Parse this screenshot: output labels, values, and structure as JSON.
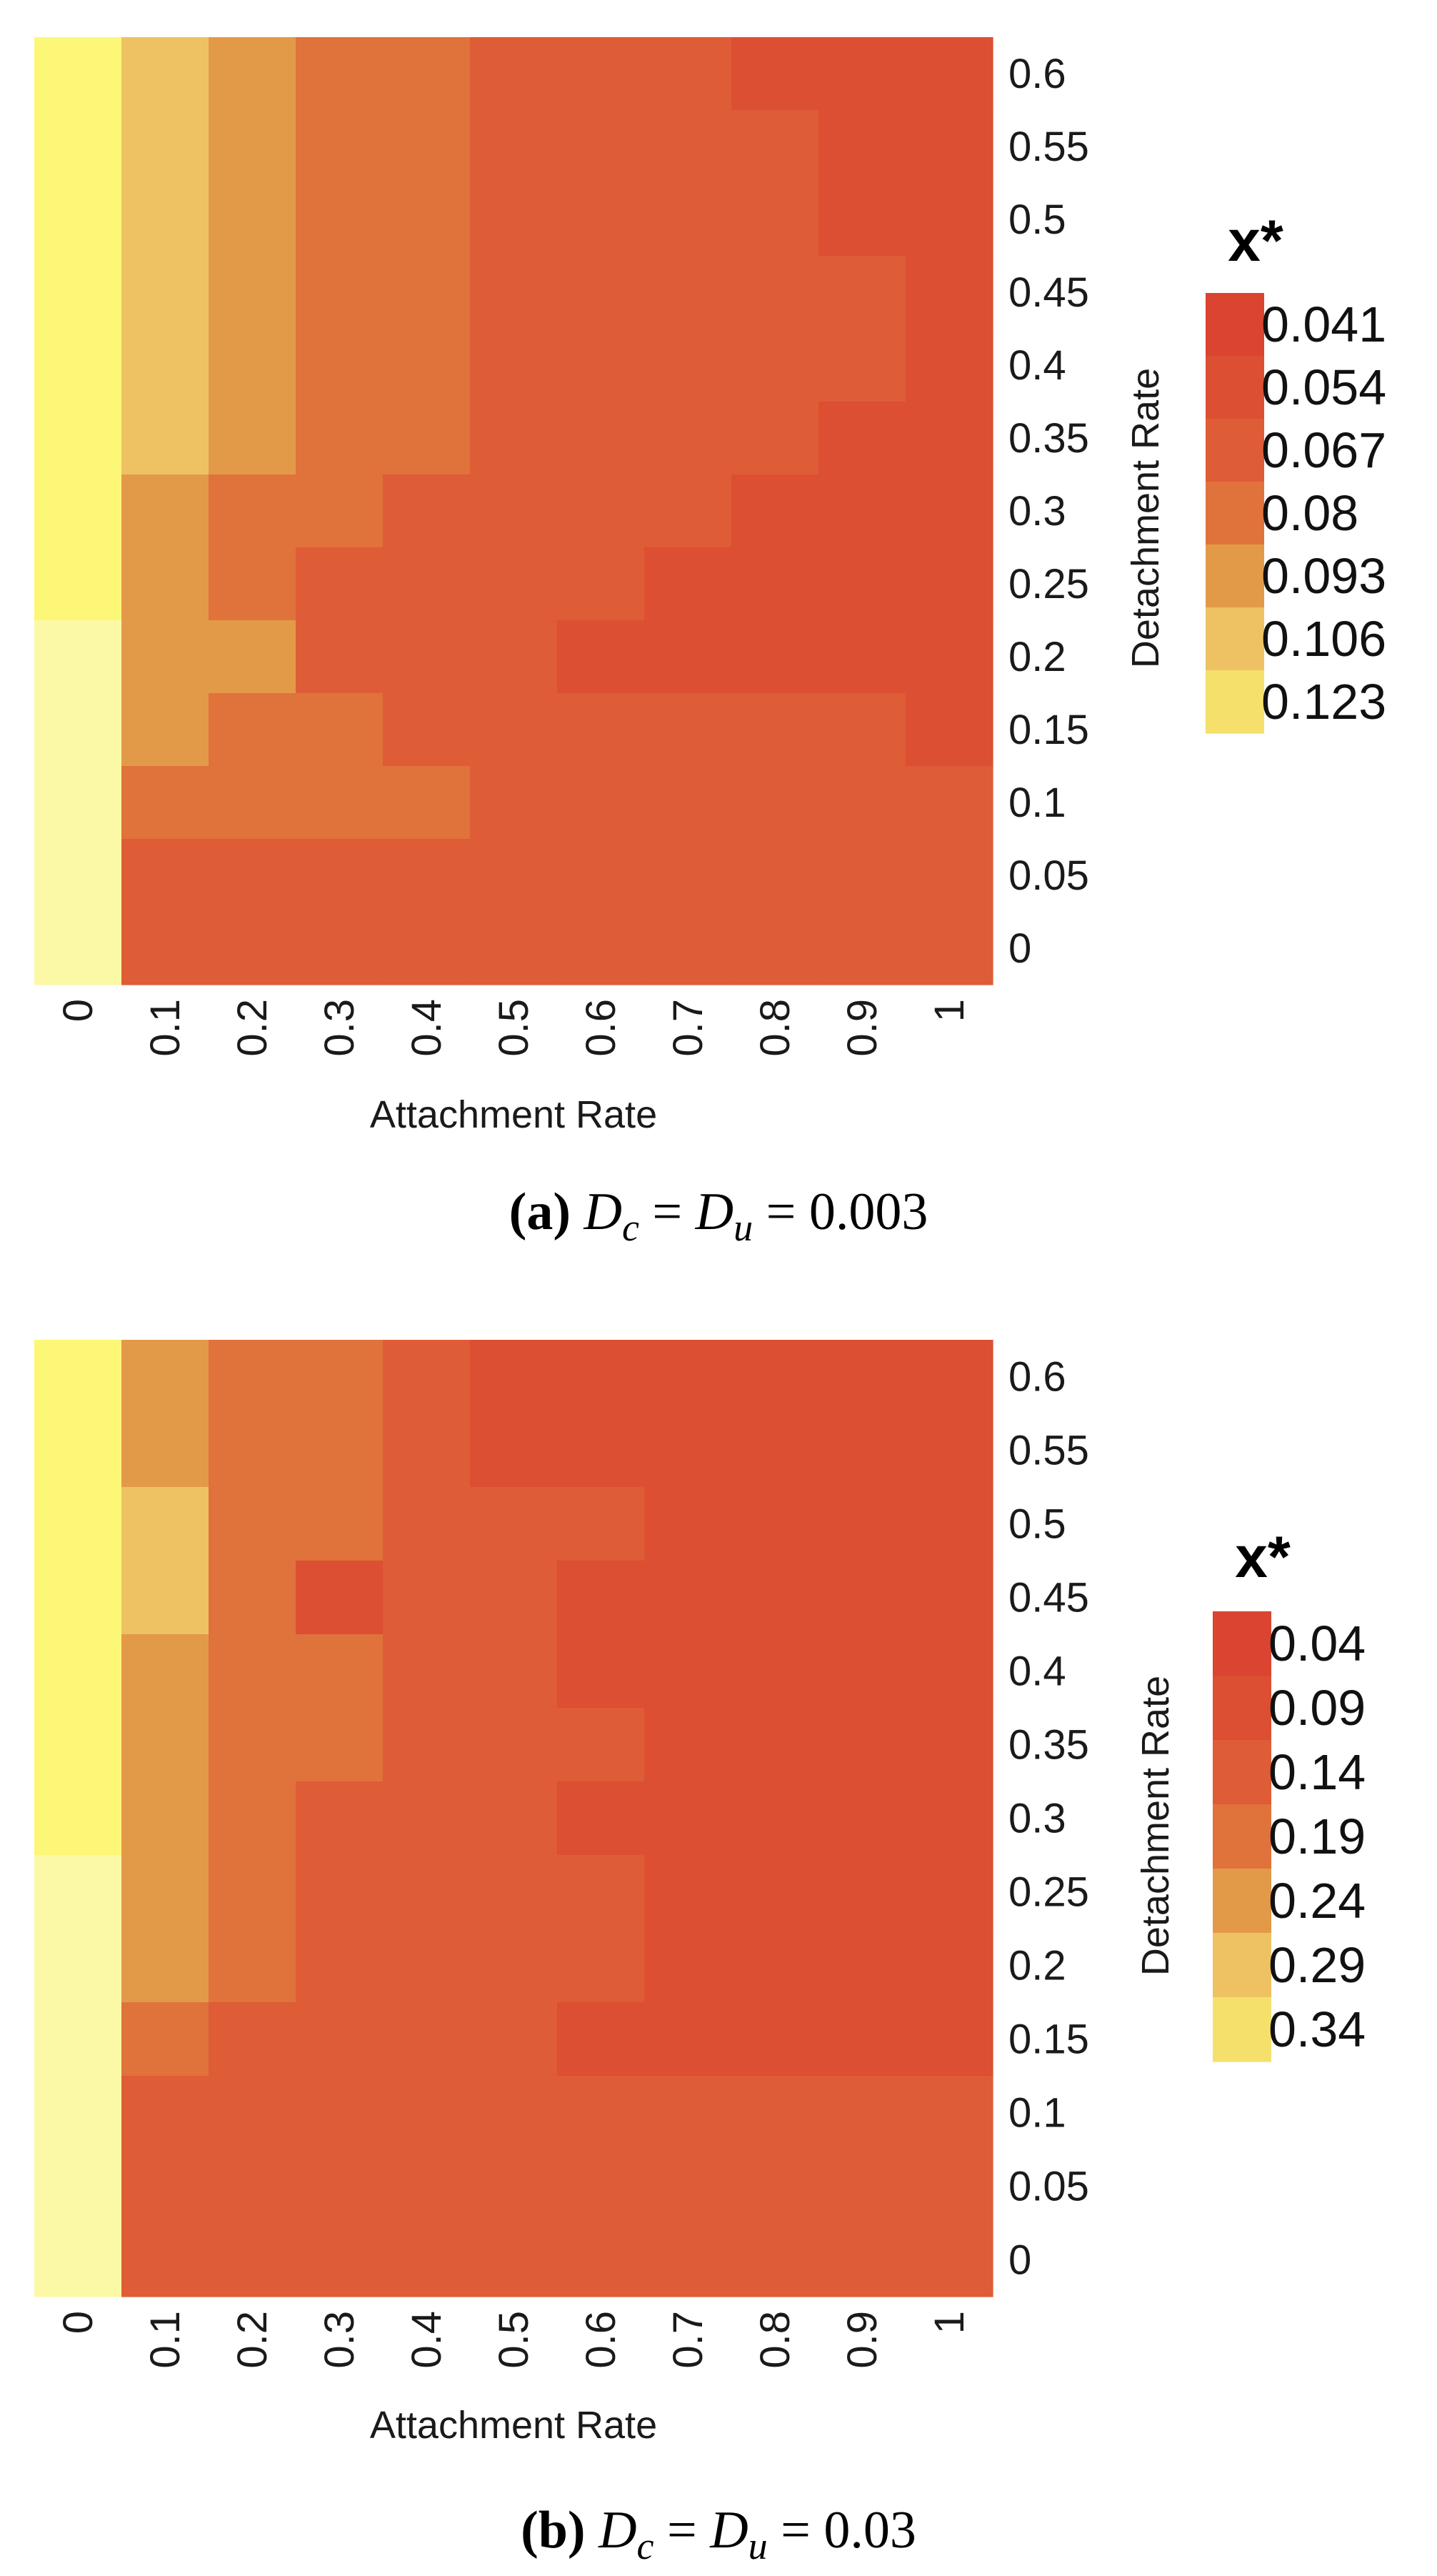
{
  "chart_data": [
    {
      "type": "heatmap",
      "panel_label": "(a)",
      "caption": {
        "prefix": "(",
        "letter": "a",
        "suffix": ")",
        "lhs1_base": "D",
        "lhs1_sub": "c",
        "lhs2_base": "D",
        "lhs2_sub": "u",
        "value": "0.003"
      },
      "xlabel": "Attachment Rate",
      "ylabel": "Detachment Rate",
      "x": [
        "0",
        "0.1",
        "0.2",
        "0.3",
        "0.4",
        "0.5",
        "0.6",
        "0.7",
        "0.8",
        "0.9",
        "1"
      ],
      "y_top_to_bottom": [
        "0.6",
        "0.55",
        "0.5",
        "0.45",
        "0.4",
        "0.35",
        "0.3",
        "0.25",
        "0.2",
        "0.15",
        "0.1",
        "0.05",
        "0"
      ],
      "legend": {
        "title": "x*",
        "entries": [
          "0.041",
          "0.054",
          "0.067",
          "0.08",
          "0.093",
          "0.106",
          "0.123"
        ],
        "colors": [
          "#da4430",
          "#dc4f32",
          "#de5c36",
          "#e0723c",
          "#e39a48",
          "#eec262",
          "#f6e06c"
        ]
      },
      "palette": [
        "#da4430",
        "#dc4f32",
        "#de5c36",
        "#e0723c",
        "#e39a48",
        "#eec262",
        "#fcf777",
        "#fcf9a6"
      ],
      "cells_level_rows_top_to_bottom": [
        [
          6,
          5,
          4,
          3,
          3,
          2,
          2,
          2,
          1,
          1,
          1
        ],
        [
          6,
          5,
          4,
          3,
          3,
          2,
          2,
          2,
          2,
          1,
          1
        ],
        [
          6,
          5,
          4,
          3,
          3,
          2,
          2,
          2,
          2,
          1,
          1
        ],
        [
          6,
          5,
          4,
          3,
          3,
          2,
          2,
          2,
          2,
          2,
          1
        ],
        [
          6,
          5,
          4,
          3,
          3,
          2,
          2,
          2,
          2,
          2,
          1
        ],
        [
          6,
          5,
          4,
          3,
          3,
          2,
          2,
          2,
          2,
          1,
          1
        ],
        [
          6,
          4,
          3,
          3,
          2,
          2,
          2,
          2,
          1,
          1,
          1
        ],
        [
          6,
          4,
          3,
          2,
          2,
          2,
          2,
          1,
          1,
          1,
          1
        ],
        [
          7,
          4,
          4,
          2,
          2,
          2,
          1,
          1,
          1,
          1,
          1
        ],
        [
          7,
          4,
          3,
          3,
          2,
          2,
          2,
          2,
          2,
          2,
          1
        ],
        [
          7,
          3,
          3,
          3,
          3,
          2,
          2,
          2,
          2,
          2,
          2
        ],
        [
          7,
          2,
          2,
          2,
          2,
          2,
          2,
          2,
          2,
          2,
          2
        ],
        [
          7,
          2,
          2,
          2,
          2,
          2,
          2,
          2,
          2,
          2,
          2
        ]
      ]
    },
    {
      "type": "heatmap",
      "panel_label": "(b)",
      "caption": {
        "prefix": "(",
        "letter": "b",
        "suffix": ")",
        "lhs1_base": "D",
        "lhs1_sub": "c",
        "lhs2_base": "D",
        "lhs2_sub": "u",
        "value": "0.03"
      },
      "xlabel": "Attachment Rate",
      "ylabel": "Detachment Rate",
      "x": [
        "0",
        "0.1",
        "0.2",
        "0.3",
        "0.4",
        "0.5",
        "0.6",
        "0.7",
        "0.8",
        "0.9",
        "1"
      ],
      "y_top_to_bottom": [
        "0.6",
        "0.55",
        "0.5",
        "0.45",
        "0.4",
        "0.35",
        "0.3",
        "0.25",
        "0.2",
        "0.15",
        "0.1",
        "0.05",
        "0"
      ],
      "legend": {
        "title": "x*",
        "entries": [
          "0.04",
          "0.09",
          "0.14",
          "0.19",
          "0.24",
          "0.29",
          "0.34"
        ],
        "colors": [
          "#da4430",
          "#dc4f32",
          "#de5c36",
          "#e0723c",
          "#e39a48",
          "#eec262",
          "#f6e06c"
        ]
      },
      "palette": [
        "#da4430",
        "#dc4f32",
        "#de5c36",
        "#e0723c",
        "#e39a48",
        "#eec262",
        "#fcf777",
        "#fcf9a6"
      ],
      "cells_level_rows_top_to_bottom": [
        [
          6,
          4,
          3,
          3,
          2,
          1,
          1,
          1,
          1,
          1,
          1
        ],
        [
          6,
          4,
          3,
          3,
          2,
          1,
          1,
          1,
          1,
          1,
          1
        ],
        [
          6,
          5,
          3,
          3,
          2,
          2,
          2,
          1,
          1,
          1,
          1
        ],
        [
          6,
          5,
          3,
          1,
          2,
          2,
          1,
          1,
          1,
          1,
          1
        ],
        [
          6,
          4,
          3,
          3,
          2,
          2,
          1,
          1,
          1,
          1,
          1
        ],
        [
          6,
          4,
          3,
          3,
          2,
          2,
          2,
          1,
          1,
          1,
          1
        ],
        [
          6,
          4,
          3,
          2,
          2,
          2,
          1,
          1,
          1,
          1,
          1
        ],
        [
          7,
          4,
          3,
          2,
          2,
          2,
          2,
          1,
          1,
          1,
          1
        ],
        [
          7,
          4,
          3,
          2,
          2,
          2,
          2,
          1,
          1,
          1,
          1
        ],
        [
          7,
          3,
          2,
          2,
          2,
          2,
          1,
          1,
          1,
          1,
          1
        ],
        [
          7,
          2,
          2,
          2,
          2,
          2,
          2,
          2,
          2,
          2,
          2
        ],
        [
          7,
          2,
          2,
          2,
          2,
          2,
          2,
          2,
          2,
          2,
          2
        ],
        [
          7,
          2,
          2,
          2,
          2,
          2,
          2,
          2,
          2,
          2,
          2
        ]
      ]
    }
  ]
}
